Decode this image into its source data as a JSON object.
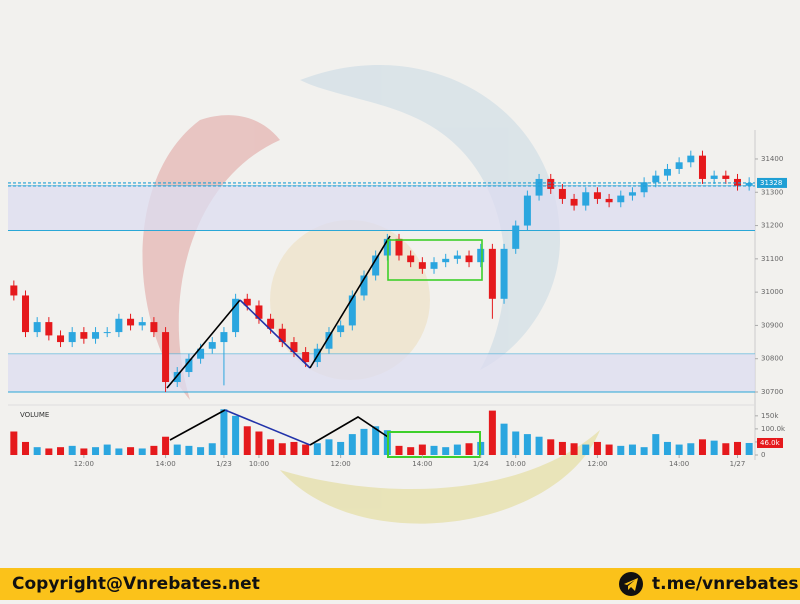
{
  "chart_data": {
    "type": "candlestick",
    "up_color": "#2ba6df",
    "down_color": "#e5191c",
    "open": [
      31020,
      30990,
      30880,
      30910,
      30870,
      30850,
      30880,
      30860,
      30880,
      30880,
      30920,
      30900,
      30910,
      30880,
      30730,
      30760,
      30800,
      30830,
      30850,
      30880,
      30980,
      30960,
      30920,
      30890,
      30850,
      30820,
      30790,
      30830,
      30880,
      30900,
      30990,
      31050,
      31110,
      31160,
      31110,
      31090,
      31070,
      31090,
      31100,
      31110,
      31090,
      31130,
      30980,
      31130,
      31200,
      31290,
      31340,
      31310,
      31280,
      31260,
      31300,
      31280,
      31270,
      31290,
      31300,
      31330,
      31350,
      31370,
      31390,
      31410,
      31340,
      31350,
      31340,
      31320
    ],
    "high": [
      31035,
      31005,
      30925,
      30925,
      30885,
      30895,
      30895,
      30895,
      30895,
      30935,
      30935,
      30925,
      30925,
      30895,
      30775,
      30815,
      30845,
      30865,
      30895,
      30995,
      30995,
      30975,
      30935,
      30905,
      30865,
      30835,
      30845,
      30895,
      30915,
      31005,
      31065,
      31125,
      31175,
      31175,
      31125,
      31105,
      31105,
      31115,
      31125,
      31125,
      31145,
      31145,
      31145,
      31215,
      31305,
      31355,
      31355,
      31325,
      31295,
      31315,
      31315,
      31295,
      31305,
      31315,
      31345,
      31365,
      31385,
      31405,
      31425,
      31425,
      31365,
      31365,
      31355,
      31345
    ],
    "low": [
      30975,
      30865,
      30865,
      30855,
      30835,
      30835,
      30845,
      30845,
      30865,
      30865,
      30885,
      30885,
      30865,
      30700,
      30715,
      30745,
      30785,
      30815,
      30720,
      30865,
      30945,
      30905,
      30875,
      30835,
      30805,
      30775,
      30775,
      30815,
      30865,
      30885,
      30975,
      31035,
      31095,
      31095,
      31075,
      31055,
      31055,
      31075,
      31085,
      31075,
      31075,
      30920,
      30965,
      31115,
      31185,
      31275,
      31295,
      31265,
      31245,
      31245,
      31265,
      31255,
      31255,
      31275,
      31285,
      31315,
      31335,
      31355,
      31375,
      31325,
      31325,
      31325,
      31305,
      31305
    ],
    "close": [
      30990,
      30880,
      30910,
      30870,
      30850,
      30880,
      30860,
      30880,
      30880,
      30920,
      30900,
      30910,
      30880,
      30730,
      30760,
      30800,
      30830,
      30850,
      30880,
      30980,
      30960,
      30920,
      30890,
      30850,
      30820,
      30790,
      30830,
      30880,
      30900,
      30990,
      31050,
      31110,
      31160,
      31110,
      31090,
      31070,
      31090,
      31100,
      31110,
      31090,
      31130,
      30980,
      31130,
      31200,
      31290,
      31340,
      31310,
      31280,
      31260,
      31300,
      31280,
      31270,
      31290,
      31300,
      31330,
      31350,
      31370,
      31390,
      31410,
      31340,
      31350,
      31340,
      31320,
      31328
    ],
    "xlim": [
      -0.5,
      63.5
    ],
    "xticks": [
      {
        "value": 6,
        "label": "12:00"
      },
      {
        "value": 13,
        "label": "14:00"
      },
      {
        "value": 18,
        "label": "1/23"
      },
      {
        "value": 21,
        "label": "10:00"
      },
      {
        "value": 28,
        "label": "12:00"
      },
      {
        "value": 35,
        "label": "14:00"
      },
      {
        "value": 40,
        "label": "1/24"
      },
      {
        "value": 43,
        "label": "10:00"
      },
      {
        "value": 50,
        "label": "12:00"
      },
      {
        "value": 57,
        "label": "14:00"
      },
      {
        "value": 62,
        "label": "1/27"
      }
    ],
    "ylim": [
      30670,
      31472
    ],
    "yticks": [
      30700,
      30800,
      30900,
      31000,
      31100,
      31200,
      31300,
      31400
    ],
    "grid": false,
    "bands": [
      [
        31185,
        31320
      ],
      [
        30700,
        30815
      ]
    ],
    "volume": {
      "label": "VOLUME",
      "values": [
        90,
        50,
        30,
        25,
        30,
        35,
        25,
        30,
        40,
        25,
        30,
        25,
        35,
        70,
        40,
        35,
        30,
        45,
        175,
        150,
        110,
        90,
        60,
        45,
        50,
        40,
        45,
        60,
        50,
        80,
        100,
        110,
        95,
        35,
        30,
        40,
        35,
        30,
        40,
        45,
        50,
        170,
        120,
        90,
        80,
        70,
        60,
        50,
        45,
        40,
        50,
        40,
        35,
        40,
        30,
        80,
        50,
        40,
        45,
        60,
        55,
        45,
        50,
        46
      ],
      "ylim": [
        0,
        180
      ],
      "yticks": [
        0,
        {
          "value": 50,
          "label": "50.0k"
        },
        {
          "value": 100,
          "label": "100.0k"
        },
        {
          "value": 150,
          "label": "150k"
        }
      ],
      "last_label": "46.0k"
    }
  },
  "footer": {
    "copyright": "Copyright@Vnrebates.net",
    "telegram": "t.me/vnrebates"
  }
}
